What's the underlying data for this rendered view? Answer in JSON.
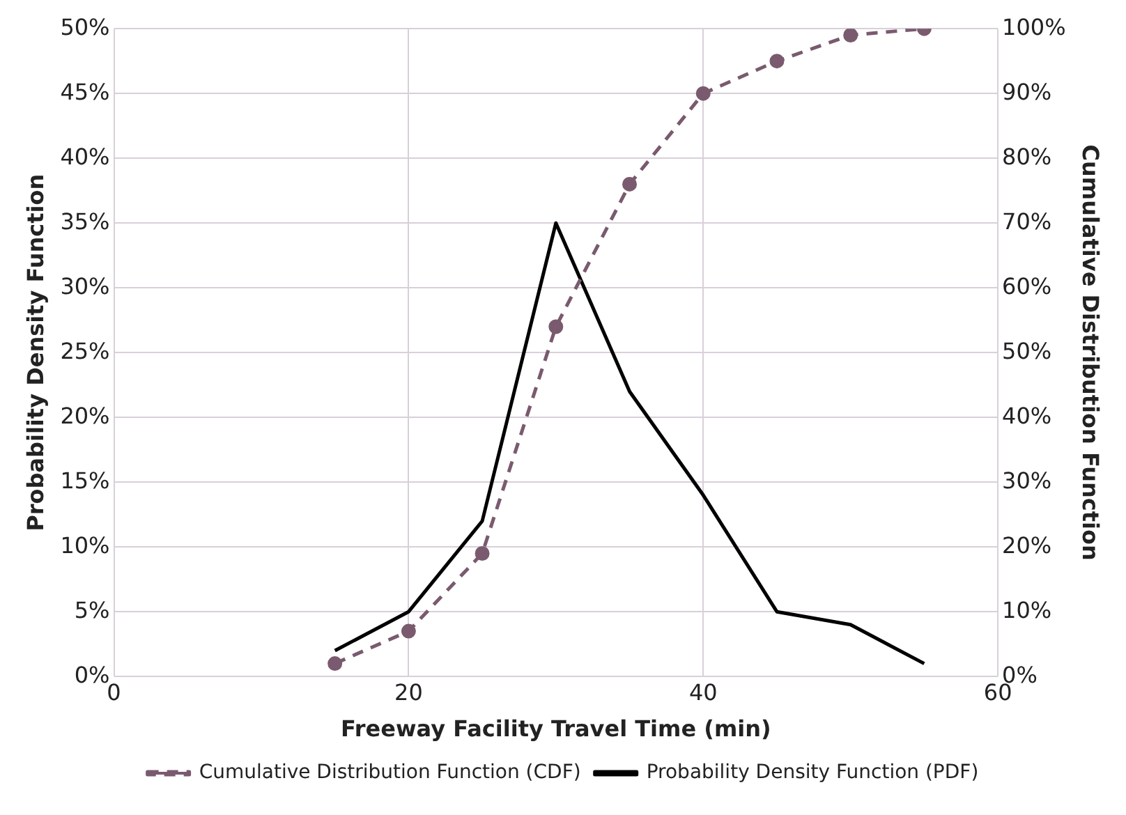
{
  "chart_data": {
    "type": "line",
    "xlabel": "Freeway Facility Travel Time (min)",
    "ylabel": "Probability Density Function",
    "y2label": "Cumulative Distribution Function",
    "x": [
      15,
      20,
      25,
      30,
      35,
      40,
      45,
      50,
      55
    ],
    "series": [
      {
        "name": "Cumulative Distribution Function (CDF)",
        "color": "#7a5a6e",
        "values": [
          2,
          7,
          19,
          54,
          76,
          90,
          95,
          99,
          100
        ],
        "axis": "y2",
        "line_style": "dashed",
        "marker": "circle"
      },
      {
        "name": "Probability Density Function (PDF)",
        "color": "#000000",
        "values": [
          2,
          5,
          12,
          35,
          22,
          14,
          5,
          4,
          1
        ],
        "line_style": "solid",
        "marker": "none"
      }
    ],
    "xlim": [
      0,
      60
    ],
    "xticks": [
      0,
      20,
      40,
      60
    ],
    "ylim": [
      0,
      50
    ],
    "yticks": [
      {
        "value": 0,
        "label": "0%"
      },
      {
        "value": 5,
        "label": "5%"
      },
      {
        "value": 10,
        "label": "10%"
      },
      {
        "value": 15,
        "label": "15%"
      },
      {
        "value": 20,
        "label": "20%"
      },
      {
        "value": 25,
        "label": "25%"
      },
      {
        "value": 30,
        "label": "30%"
      },
      {
        "value": 35,
        "label": "35%"
      },
      {
        "value": 40,
        "label": "40%"
      },
      {
        "value": 45,
        "label": "45%"
      },
      {
        "value": 50,
        "label": "50%"
      }
    ],
    "y2lim": [
      0,
      100
    ],
    "y2ticks": [
      {
        "value": 0,
        "label": "0%"
      },
      {
        "value": 10,
        "label": "10%"
      },
      {
        "value": 20,
        "label": "20%"
      },
      {
        "value": 30,
        "label": "30%"
      },
      {
        "value": 40,
        "label": "40%"
      },
      {
        "value": 50,
        "label": "50%"
      },
      {
        "value": 60,
        "label": "60%"
      },
      {
        "value": 70,
        "label": "70%"
      },
      {
        "value": 80,
        "label": "80%"
      },
      {
        "value": 90,
        "label": "90%"
      },
      {
        "value": 100,
        "label": "100%"
      }
    ],
    "grid": true,
    "legend": "bottom"
  }
}
